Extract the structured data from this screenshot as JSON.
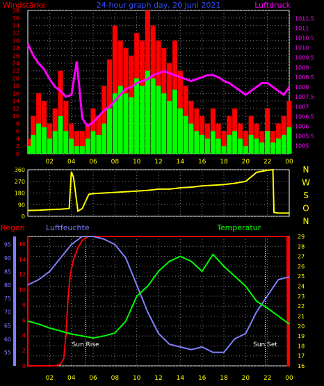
{
  "chart_data": [
    {
      "type": "bar",
      "title": "24-hour graph day, 20 Juni 2021",
      "left_label": "Windstärke",
      "right_label": "Luftdruck",
      "x_ticks": [
        "02",
        "04",
        "06",
        "08",
        "10",
        "12",
        "14",
        "16",
        "18",
        "20",
        "22",
        "00"
      ],
      "y_left_ticks": [
        "0",
        "2",
        "4",
        "6",
        "8",
        "10",
        "12",
        "14",
        "16",
        "18",
        "20",
        "22",
        "24",
        "26",
        "28",
        "30",
        "32",
        "34",
        "36",
        "38"
      ],
      "y_right_ticks": [
        "1005",
        "1005.5",
        "1006",
        "1006.5",
        "1007",
        "1007.5",
        "1008",
        "1008.5",
        "1009",
        "1009.5",
        "1010",
        "1010.5",
        "1011",
        "1011.5"
      ],
      "ylim_left": [
        0,
        38
      ],
      "ylim_right": [
        1004.6,
        1011.9
      ],
      "series": [
        {
          "color": "#ff0000",
          "kind": "gust-bars",
          "x": [
            0,
            0.5,
            1,
            1.5,
            2,
            2.5,
            3,
            3.5,
            4,
            4.5,
            5,
            5.5,
            6,
            6.5,
            7,
            7.5,
            8,
            8.5,
            9,
            9.5,
            10,
            10.5,
            11,
            11.5,
            12,
            12.5,
            13,
            13.5,
            14,
            14.5,
            15,
            15.5,
            16,
            16.5,
            17,
            17.5,
            18,
            18.5,
            19,
            19.5,
            20,
            20.5,
            21,
            21.5,
            22,
            22.5,
            23,
            23.5,
            24
          ],
          "values": [
            4,
            10,
            16,
            14,
            8,
            12,
            22,
            14,
            8,
            6,
            6,
            8,
            12,
            10,
            18,
            25,
            34,
            30,
            28,
            26,
            32,
            30,
            38,
            34,
            30,
            28,
            24,
            30,
            22,
            18,
            14,
            12,
            10,
            8,
            12,
            8,
            6,
            10,
            12,
            8,
            6,
            10,
            8,
            6,
            12,
            6,
            8,
            10,
            14
          ]
        },
        {
          "color": "#00ff00",
          "kind": "wind-bars",
          "x": [
            0,
            0.5,
            1,
            1.5,
            2,
            2.5,
            3,
            3.5,
            4,
            4.5,
            5,
            5.5,
            6,
            6.5,
            7,
            7.5,
            8,
            8.5,
            9,
            9.5,
            10,
            10.5,
            11,
            11.5,
            12,
            12.5,
            13,
            13.5,
            14,
            14.5,
            15,
            15.5,
            16,
            16.5,
            17,
            17.5,
            18,
            18.5,
            19,
            19.5,
            20,
            20.5,
            21,
            21.5,
            22,
            22.5,
            23,
            23.5,
            24
          ],
          "values": [
            2,
            5,
            8,
            7,
            4,
            6,
            10,
            6,
            4,
            2,
            2,
            4,
            6,
            5,
            8,
            12,
            16,
            18,
            16,
            15,
            20,
            18,
            22,
            20,
            18,
            16,
            14,
            17,
            12,
            10,
            8,
            6,
            5,
            4,
            6,
            4,
            2,
            5,
            6,
            4,
            2,
            5,
            4,
            3,
            6,
            3,
            4,
            5,
            7
          ]
        },
        {
          "color": "#ff00ff",
          "kind": "pressure-line",
          "axis": "right",
          "x": [
            0,
            0.5,
            1,
            1.5,
            2,
            2.5,
            3,
            3.5,
            4,
            4.5,
            5,
            5.5,
            6,
            6.5,
            7,
            7.5,
            8,
            8.5,
            9,
            9.5,
            10,
            10.5,
            11,
            11.5,
            12,
            12.5,
            13,
            13.5,
            14,
            14.5,
            15,
            15.5,
            16,
            16.5,
            17,
            17.5,
            18,
            18.5,
            19,
            19.5,
            20,
            20.5,
            21,
            21.5,
            22,
            22.5,
            23,
            23.5,
            24
          ],
          "values": [
            1010.2,
            1009.6,
            1009.2,
            1008.9,
            1008.4,
            1008.0,
            1007.8,
            1007.5,
            1007.6,
            1009.3,
            1006.4,
            1006.0,
            1006.2,
            1006.5,
            1006.8,
            1007.0,
            1007.3,
            1007.6,
            1007.9,
            1008.0,
            1008.2,
            1008.3,
            1008.4,
            1008.6,
            1008.7,
            1008.8,
            1008.7,
            1008.6,
            1008.5,
            1008.4,
            1008.3,
            1008.4,
            1008.5,
            1008.6,
            1008.6,
            1008.5,
            1008.3,
            1008.2,
            1008.0,
            1007.8,
            1007.6,
            1007.8,
            1008.0,
            1008.2,
            1008.2,
            1008.0,
            1007.8,
            1007.6,
            1008.0
          ]
        }
      ]
    },
    {
      "type": "line",
      "direction_labels": [
        "N",
        "W",
        "S",
        "O",
        "N"
      ],
      "y_left_ticks": [
        "0",
        "90",
        "180",
        "270",
        "360"
      ],
      "ylim": [
        0,
        360
      ],
      "x_ticks": [],
      "series": [
        {
          "color": "#ffff00",
          "x": [
            0,
            1,
            2,
            3,
            3.8,
            4.0,
            4.2,
            4.6,
            5.0,
            5.6,
            6,
            7,
            8,
            9,
            10,
            11,
            12,
            13,
            14,
            15,
            16,
            17,
            18,
            19,
            20,
            20.8,
            21,
            22,
            22.5,
            22.6,
            23,
            24
          ],
          "values": [
            45,
            47,
            52,
            55,
            60,
            345,
            300,
            40,
            60,
            170,
            175,
            180,
            185,
            190,
            195,
            200,
            210,
            210,
            220,
            225,
            235,
            240,
            245,
            255,
            270,
            325,
            340,
            355,
            360,
            30,
            25,
            25
          ]
        }
      ]
    },
    {
      "type": "line",
      "labels": {
        "rain": "Regen",
        "humidity": "Luftfeuchte",
        "temperature": "Temperatur",
        "sunrise": "Sun Rise",
        "sunset": "Sun Set"
      },
      "x_ticks": [
        "02",
        "04",
        "06",
        "08",
        "10",
        "12",
        "14",
        "16",
        "18",
        "20",
        "22",
        "00"
      ],
      "y_rain_ticks": [
        "0",
        "2",
        "4",
        "6",
        "8",
        "10",
        "12",
        "14",
        "16"
      ],
      "y_humidity_ticks": [
        "55",
        "60",
        "65",
        "70",
        "75",
        "80",
        "85",
        "90",
        "95"
      ],
      "y_temp_ticks": [
        "16",
        "17",
        "18",
        "19",
        "20",
        "21",
        "22",
        "23",
        "24",
        "25",
        "26",
        "27",
        "28",
        "29"
      ],
      "ylim_rain": [
        0,
        17
      ],
      "ylim_humidity": [
        50,
        98
      ],
      "ylim_temp": [
        16,
        29
      ],
      "sunrise_hour": 5.3,
      "sunset_hour": 21.8,
      "series": [
        {
          "name": "Regen",
          "color": "#ff0000",
          "x": [
            0,
            2.5,
            3.0,
            3.3,
            3.5,
            3.7,
            3.9,
            4.2,
            4.6,
            5.0,
            5.5,
            6,
            8,
            10,
            12,
            14,
            16,
            18,
            20,
            22,
            23.8,
            23.85,
            24
          ],
          "values": [
            0,
            0,
            0.2,
            1,
            4,
            9,
            12,
            14,
            15.5,
            16.5,
            17,
            17,
            17,
            17,
            17,
            17,
            17,
            17,
            17,
            17,
            17,
            0,
            0
          ]
        },
        {
          "name": "Luftfeuchte",
          "color": "#8080ff",
          "x": [
            0,
            1,
            2,
            3,
            4,
            5,
            6,
            7,
            8,
            9,
            10,
            11,
            12,
            13,
            14,
            15,
            16,
            17,
            18,
            19,
            20,
            21,
            22,
            23,
            24
          ],
          "values": [
            80,
            82,
            85,
            90,
            95,
            98,
            98,
            97,
            95,
            90,
            80,
            70,
            62,
            58,
            57,
            56,
            57,
            55,
            55,
            60,
            62,
            70,
            76,
            82,
            83
          ]
        },
        {
          "name": "Temperatur",
          "color": "#00ff00",
          "x": [
            0,
            1,
            2,
            3,
            4,
            5,
            6,
            7,
            8,
            9,
            10,
            11,
            12,
            13,
            14,
            15,
            16,
            17,
            18,
            19,
            20,
            21,
            22,
            23,
            24
          ],
          "values": [
            20.5,
            20.2,
            19.8,
            19.5,
            19.2,
            19.0,
            18.8,
            19.0,
            19.3,
            20.5,
            23.0,
            24.0,
            25.5,
            26.5,
            27.0,
            26.5,
            25.5,
            27.2,
            26.0,
            25.0,
            24.0,
            22.5,
            21.8,
            21.0,
            20.2
          ]
        }
      ]
    }
  ]
}
